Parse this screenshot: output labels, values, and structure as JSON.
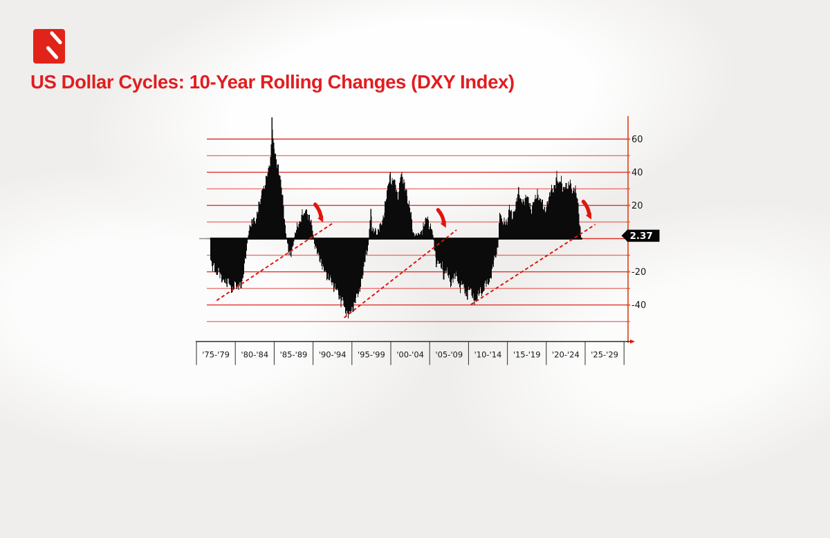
{
  "header": {
    "title": "US Dollar Cycles: 10-Year Rolling Changes (DXY Index)",
    "title_color": "#e11d20"
  },
  "brand": {
    "logo_color": "#e2231a",
    "logo_mark_color": "#ffffff"
  },
  "chart_data": {
    "type": "bar",
    "title": "US Dollar Cycles: 10-Year Rolling Changes (DXY Index)",
    "x_categories": [
      "'75-'79",
      "'80-'84",
      "'85-'89",
      "'90-'94",
      "'95-'99",
      "'00-'04",
      "'05-'09",
      "'10-'14",
      "'15-'19",
      "'20-'24",
      "'25-'29"
    ],
    "x_year_range": [
      1975,
      2030
    ],
    "ylim": [
      -52,
      74
    ],
    "y_gridlines": [
      60,
      50,
      40,
      30,
      20,
      10,
      0,
      -10,
      -20,
      -30,
      -40,
      -50
    ],
    "y_tick_labels": [
      {
        "v": 60,
        "label": "60"
      },
      {
        "v": 40,
        "label": "40"
      },
      {
        "v": 20,
        "label": "20"
      },
      {
        "v": 0,
        "label": "0"
      },
      {
        "v": -20,
        "label": "-20"
      },
      {
        "v": -40,
        "label": "-40"
      }
    ],
    "last_value_label": "2.37",
    "last_value": 2.37,
    "series": [
      {
        "name": "DXY 10-year rolling change",
        "keypoints": [
          [
            1976.85,
            -13
          ],
          [
            1977.05,
            -19
          ],
          [
            1977.3,
            -17
          ],
          [
            1977.55,
            -21
          ],
          [
            1977.8,
            -19
          ],
          [
            1978.05,
            -23
          ],
          [
            1978.3,
            -25
          ],
          [
            1978.6,
            -24
          ],
          [
            1978.9,
            -28
          ],
          [
            1979.15,
            -26
          ],
          [
            1979.4,
            -29
          ],
          [
            1979.7,
            -31
          ],
          [
            1979.95,
            -28
          ],
          [
            1980.2,
            -30
          ],
          [
            1980.5,
            -27
          ],
          [
            1980.75,
            -29
          ],
          [
            1981.0,
            -25
          ],
          [
            1981.2,
            -16
          ],
          [
            1981.35,
            -9
          ],
          [
            1981.5,
            -4
          ],
          [
            1981.65,
            2
          ],
          [
            1981.85,
            6
          ],
          [
            1982.1,
            9
          ],
          [
            1982.35,
            13
          ],
          [
            1982.6,
            11
          ],
          [
            1982.85,
            15
          ],
          [
            1983.1,
            21
          ],
          [
            1983.35,
            26
          ],
          [
            1983.5,
            33
          ],
          [
            1983.7,
            29
          ],
          [
            1983.9,
            34
          ],
          [
            1984.1,
            38
          ],
          [
            1984.3,
            43
          ],
          [
            1984.5,
            49
          ],
          [
            1984.62,
            56
          ],
          [
            1984.72,
            73
          ],
          [
            1984.82,
            58
          ],
          [
            1984.95,
            56
          ],
          [
            1985.1,
            52
          ],
          [
            1985.3,
            47
          ],
          [
            1985.5,
            44
          ],
          [
            1985.7,
            38
          ],
          [
            1985.9,
            32
          ],
          [
            1986.1,
            24
          ],
          [
            1986.3,
            14
          ],
          [
            1986.5,
            5
          ],
          [
            1986.65,
            -2
          ],
          [
            1986.85,
            -8
          ],
          [
            1987.05,
            -11
          ],
          [
            1987.25,
            -7
          ],
          [
            1987.45,
            -3
          ],
          [
            1987.65,
            2
          ],
          [
            1987.9,
            6
          ],
          [
            1988.15,
            9
          ],
          [
            1988.4,
            12
          ],
          [
            1988.65,
            16
          ],
          [
            1988.85,
            12
          ],
          [
            1989.05,
            19
          ],
          [
            1989.25,
            16
          ],
          [
            1989.5,
            13
          ],
          [
            1989.75,
            9
          ],
          [
            1989.95,
            5
          ],
          [
            1990.15,
            -2
          ],
          [
            1990.4,
            -6
          ],
          [
            1990.65,
            -10
          ],
          [
            1990.9,
            -14
          ],
          [
            1991.3,
            -16
          ],
          [
            1991.55,
            -20
          ],
          [
            1991.8,
            -25
          ],
          [
            1992.2,
            -22
          ],
          [
            1992.4,
            -26
          ],
          [
            1992.7,
            -31
          ],
          [
            1993.05,
            -29
          ],
          [
            1993.3,
            -33
          ],
          [
            1993.6,
            -40
          ],
          [
            1993.85,
            -37
          ],
          [
            1994.1,
            -42
          ],
          [
            1994.4,
            -46
          ],
          [
            1994.6,
            -47
          ],
          [
            1994.85,
            -44
          ],
          [
            1995.1,
            -42
          ],
          [
            1995.4,
            -38
          ],
          [
            1995.65,
            -35
          ],
          [
            1995.9,
            -33
          ],
          [
            1996.15,
            -25
          ],
          [
            1996.45,
            -22
          ],
          [
            1996.7,
            -12
          ],
          [
            1996.95,
            -7
          ],
          [
            1997.15,
            -3
          ],
          [
            1997.3,
            10
          ],
          [
            1997.45,
            16
          ],
          [
            1997.6,
            6
          ],
          [
            1997.8,
            4
          ],
          [
            1998.0,
            7
          ],
          [
            1998.2,
            3
          ],
          [
            1998.5,
            5
          ],
          [
            1998.8,
            9
          ],
          [
            1999.0,
            13
          ],
          [
            1999.2,
            18
          ],
          [
            1999.55,
            28
          ],
          [
            1999.9,
            40
          ],
          [
            2000.1,
            34
          ],
          [
            2000.35,
            36
          ],
          [
            2000.9,
            26
          ],
          [
            2001.3,
            39
          ],
          [
            2001.6,
            35
          ],
          [
            2002.0,
            30
          ],
          [
            2002.2,
            22
          ],
          [
            2002.5,
            17
          ],
          [
            2002.85,
            5
          ],
          [
            2003.1,
            2
          ],
          [
            2003.4,
            2
          ],
          [
            2003.7,
            3
          ],
          [
            2004.0,
            5
          ],
          [
            2004.45,
            10
          ],
          [
            2004.7,
            14
          ],
          [
            2005.0,
            8
          ],
          [
            2005.25,
            6
          ],
          [
            2005.5,
            0
          ],
          [
            2005.65,
            -8
          ],
          [
            2005.9,
            -15
          ],
          [
            2006.1,
            -13
          ],
          [
            2006.35,
            -18
          ],
          [
            2006.6,
            -16
          ],
          [
            2006.85,
            -24
          ],
          [
            2007.0,
            -19
          ],
          [
            2007.3,
            -21
          ],
          [
            2007.74,
            -28
          ],
          [
            2007.9,
            -23
          ],
          [
            2008.1,
            -25
          ],
          [
            2008.45,
            -22
          ],
          [
            2008.7,
            -26
          ],
          [
            2008.9,
            -30
          ],
          [
            2009.2,
            -27
          ],
          [
            2009.5,
            -32
          ],
          [
            2009.8,
            -34
          ],
          [
            2010.05,
            -30
          ],
          [
            2010.4,
            -33
          ],
          [
            2010.7,
            -36
          ],
          [
            2010.95,
            -38.5
          ],
          [
            2011.2,
            -35
          ],
          [
            2011.56,
            -31
          ],
          [
            2011.8,
            -33
          ],
          [
            2012.1,
            -29
          ],
          [
            2012.4,
            -27
          ],
          [
            2012.72,
            -25
          ],
          [
            2013.0,
            -21
          ],
          [
            2013.25,
            -14
          ],
          [
            2013.55,
            -9
          ],
          [
            2013.79,
            -4
          ],
          [
            2014.06,
            17
          ],
          [
            2014.3,
            9
          ],
          [
            2014.7,
            12
          ],
          [
            2015.0,
            8
          ],
          [
            2015.3,
            20
          ],
          [
            2015.6,
            14
          ],
          [
            2016.0,
            17
          ],
          [
            2016.46,
            30
          ],
          [
            2016.7,
            24
          ],
          [
            2017.1,
            20
          ],
          [
            2017.5,
            28
          ],
          [
            2017.8,
            22
          ],
          [
            2018.05,
            15
          ],
          [
            2018.4,
            24
          ],
          [
            2018.85,
            27
          ],
          [
            2019.1,
            22
          ],
          [
            2019.4,
            25
          ],
          [
            2019.85,
            15
          ],
          [
            2020.1,
            20
          ],
          [
            2020.4,
            26
          ],
          [
            2020.65,
            32
          ],
          [
            2020.9,
            27
          ],
          [
            2021.2,
            33
          ],
          [
            2021.35,
            40
          ],
          [
            2021.6,
            33
          ],
          [
            2021.9,
            35
          ],
          [
            2022.15,
            29
          ],
          [
            2022.5,
            34
          ],
          [
            2022.8,
            30
          ],
          [
            2023.1,
            34
          ],
          [
            2023.4,
            29
          ],
          [
            2023.65,
            31
          ],
          [
            2023.9,
            26
          ],
          [
            2024.1,
            20
          ],
          [
            2024.25,
            12
          ],
          [
            2024.45,
            2.37
          ]
        ]
      }
    ],
    "trendlines": [
      {
        "from": [
          1977.6,
          -37.3
        ],
        "to": [
          1992.7,
          9.8
        ]
      },
      {
        "from": [
          1994.0,
          -47.7
        ],
        "to": [
          2008.45,
          5.2
        ]
      },
      {
        "from": [
          2010.3,
          -39.8
        ],
        "to": [
          2026.3,
          8.5
        ]
      }
    ],
    "arrows_at": [
      [
        1991.3,
        9.8
      ],
      [
        2007.1,
        6.5
      ],
      [
        2025.8,
        11.5
      ]
    ],
    "legend": null,
    "grid": true,
    "colors": {
      "bars": "#0b0b0b",
      "grid": "#dc231c",
      "axis_line": "#e0512e",
      "annotation": "#e0150b",
      "baseline": "#0b0b0b",
      "baseline_lead": "#8f8f8f",
      "tag_bg": "#060606",
      "tag_text": "#ffffff",
      "tick_text": "#161616",
      "x_axis": "#2b2b2b"
    }
  }
}
